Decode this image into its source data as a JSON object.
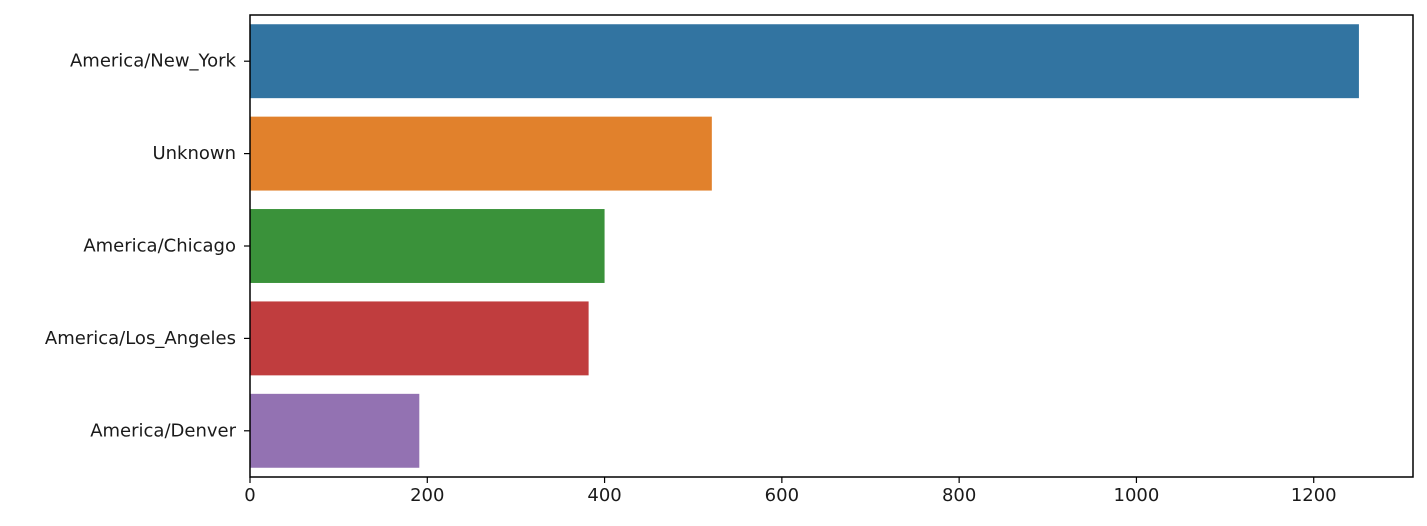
{
  "chart_data": {
    "type": "bar",
    "orientation": "horizontal",
    "categories": [
      "America/New_York",
      "Unknown",
      "America/Chicago",
      "America/Los_Angeles",
      "America/Denver"
    ],
    "values": [
      1251,
      521,
      400,
      382,
      191
    ],
    "colors": [
      "#3274a1",
      "#e1812c",
      "#3a923a",
      "#c03d3e",
      "#9372b2"
    ],
    "xlim": [
      0,
      1312
    ],
    "xticks": [
      0,
      200,
      400,
      600,
      800,
      1000,
      1200
    ],
    "title": "",
    "xlabel": "",
    "ylabel": "",
    "grid": false
  }
}
